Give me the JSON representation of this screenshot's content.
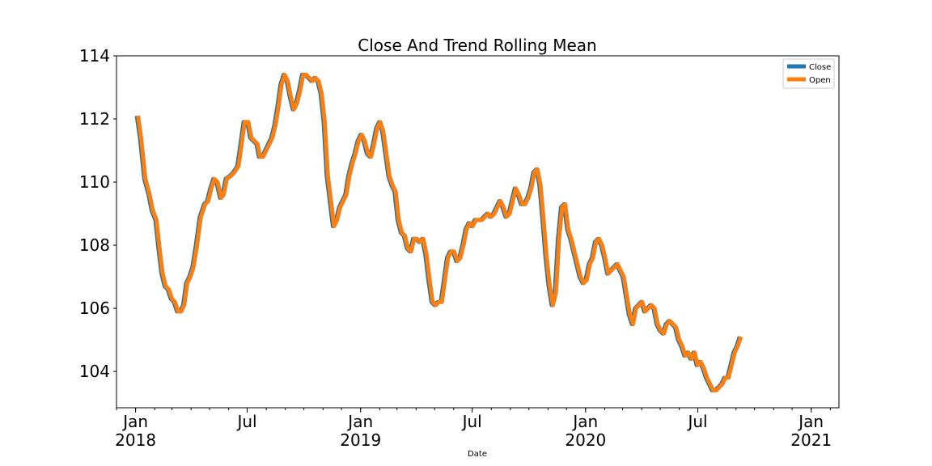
{
  "chart_data": {
    "type": "line",
    "title": "Close And Trend Rolling Mean",
    "xlabel": "Date",
    "ylabel": "",
    "x_range": [
      "2017-12-01",
      "2021-02-15"
    ],
    "ylim": [
      102.85,
      114.0
    ],
    "y_ticks": [
      104,
      106,
      108,
      110,
      112,
      114
    ],
    "x_ticks": [
      {
        "date": "2018-01-01",
        "label": "Jan",
        "year": "2018"
      },
      {
        "date": "2018-07-01",
        "label": "Jul",
        "year": ""
      },
      {
        "date": "2019-01-01",
        "label": "Jan",
        "year": "2019"
      },
      {
        "date": "2019-07-01",
        "label": "Jul",
        "year": ""
      },
      {
        "date": "2020-01-01",
        "label": "Jan",
        "year": "2020"
      },
      {
        "date": "2020-07-01",
        "label": "Jul",
        "year": ""
      },
      {
        "date": "2021-01-01",
        "label": "Jan",
        "year": "2021"
      }
    ],
    "grid": false,
    "legend_position": "upper right",
    "series": [
      {
        "name": "Close",
        "color": "#1f77b4",
        "points": [
          [
            "2018-01-03",
            112.1
          ],
          [
            "2018-01-08",
            111.4
          ],
          [
            "2018-01-15",
            110.1
          ],
          [
            "2018-01-22",
            109.6
          ],
          [
            "2018-01-27",
            109.1
          ],
          [
            "2018-02-02",
            108.8
          ],
          [
            "2018-02-07",
            107.9
          ],
          [
            "2018-02-12",
            107.1
          ],
          [
            "2018-02-17",
            106.7
          ],
          [
            "2018-02-22",
            106.6
          ],
          [
            "2018-02-27",
            106.3
          ],
          [
            "2018-03-04",
            106.2
          ],
          [
            "2018-03-09",
            105.9
          ],
          [
            "2018-03-14",
            105.9
          ],
          [
            "2018-03-19",
            106.1
          ],
          [
            "2018-03-24",
            106.8
          ],
          [
            "2018-03-29",
            107.0
          ],
          [
            "2018-04-03",
            107.3
          ],
          [
            "2018-04-08",
            107.9
          ],
          [
            "2018-04-15",
            108.9
          ],
          [
            "2018-04-22",
            109.3
          ],
          [
            "2018-04-27",
            109.4
          ],
          [
            "2018-05-02",
            109.8
          ],
          [
            "2018-05-07",
            110.1
          ],
          [
            "2018-05-12",
            110.0
          ],
          [
            "2018-05-18",
            109.5
          ],
          [
            "2018-05-22",
            109.6
          ],
          [
            "2018-05-27",
            110.1
          ],
          [
            "2018-06-03",
            110.2
          ],
          [
            "2018-06-08",
            110.3
          ],
          [
            "2018-06-15",
            110.5
          ],
          [
            "2018-06-20",
            111.2
          ],
          [
            "2018-06-25",
            111.9
          ],
          [
            "2018-07-01",
            111.9
          ],
          [
            "2018-07-06",
            111.4
          ],
          [
            "2018-07-11",
            111.3
          ],
          [
            "2018-07-16",
            111.2
          ],
          [
            "2018-07-20",
            110.8
          ],
          [
            "2018-07-25",
            110.8
          ],
          [
            "2018-07-30",
            111.0
          ],
          [
            "2018-08-04",
            111.2
          ],
          [
            "2018-08-09",
            111.4
          ],
          [
            "2018-08-14",
            111.8
          ],
          [
            "2018-08-19",
            112.4
          ],
          [
            "2018-08-24",
            113.1
          ],
          [
            "2018-08-29",
            113.4
          ],
          [
            "2018-09-03",
            113.2
          ],
          [
            "2018-09-08",
            112.7
          ],
          [
            "2018-09-13",
            112.3
          ],
          [
            "2018-09-18",
            112.5
          ],
          [
            "2018-09-23",
            112.9
          ],
          [
            "2018-09-28",
            113.4
          ],
          [
            "2018-10-03",
            113.4
          ],
          [
            "2018-10-08",
            113.3
          ],
          [
            "2018-10-13",
            113.2
          ],
          [
            "2018-10-18",
            113.3
          ],
          [
            "2018-10-23",
            113.2
          ],
          [
            "2018-10-28",
            112.8
          ],
          [
            "2018-11-02",
            111.9
          ],
          [
            "2018-11-07",
            110.2
          ],
          [
            "2018-11-12",
            109.4
          ],
          [
            "2018-11-17",
            108.6
          ],
          [
            "2018-11-22",
            108.8
          ],
          [
            "2018-11-27",
            109.2
          ],
          [
            "2018-12-02",
            109.4
          ],
          [
            "2018-12-07",
            109.6
          ],
          [
            "2018-12-12",
            110.2
          ],
          [
            "2018-12-17",
            110.6
          ],
          [
            "2018-12-22",
            110.9
          ],
          [
            "2018-12-27",
            111.3
          ],
          [
            "2019-01-01",
            111.5
          ],
          [
            "2019-01-06",
            111.3
          ],
          [
            "2019-01-11",
            110.9
          ],
          [
            "2019-01-16",
            110.8
          ],
          [
            "2019-01-21",
            111.2
          ],
          [
            "2019-01-26",
            111.7
          ],
          [
            "2019-01-31",
            111.9
          ],
          [
            "2019-02-05",
            111.6
          ],
          [
            "2019-02-10",
            110.9
          ],
          [
            "2019-02-15",
            110.2
          ],
          [
            "2019-02-20",
            109.9
          ],
          [
            "2019-02-25",
            109.7
          ],
          [
            "2019-03-02",
            108.8
          ],
          [
            "2019-03-07",
            108.4
          ],
          [
            "2019-03-12",
            108.3
          ],
          [
            "2019-03-17",
            107.9
          ],
          [
            "2019-03-22",
            107.8
          ],
          [
            "2019-03-27",
            108.2
          ],
          [
            "2019-04-01",
            108.2
          ],
          [
            "2019-04-06",
            108.1
          ],
          [
            "2019-04-11",
            108.2
          ],
          [
            "2019-04-16",
            107.7
          ],
          [
            "2019-04-21",
            106.9
          ],
          [
            "2019-04-26",
            106.2
          ],
          [
            "2019-05-01",
            106.1
          ],
          [
            "2019-05-06",
            106.2
          ],
          [
            "2019-05-11",
            106.2
          ],
          [
            "2019-05-16",
            106.9
          ],
          [
            "2019-05-21",
            107.6
          ],
          [
            "2019-05-26",
            107.8
          ],
          [
            "2019-05-31",
            107.8
          ],
          [
            "2019-06-05",
            107.5
          ],
          [
            "2019-06-10",
            107.6
          ],
          [
            "2019-06-15",
            108.0
          ],
          [
            "2019-06-20",
            108.5
          ],
          [
            "2019-06-25",
            108.7
          ],
          [
            "2019-06-30",
            108.6
          ],
          [
            "2019-07-05",
            108.8
          ],
          [
            "2019-07-10",
            108.8
          ],
          [
            "2019-07-15",
            108.8
          ],
          [
            "2019-07-20",
            108.9
          ],
          [
            "2019-07-25",
            109.0
          ],
          [
            "2019-07-30",
            108.9
          ],
          [
            "2019-08-04",
            109.0
          ],
          [
            "2019-08-09",
            109.2
          ],
          [
            "2019-08-14",
            109.4
          ],
          [
            "2019-08-19",
            109.2
          ],
          [
            "2019-08-24",
            108.9
          ],
          [
            "2019-08-29",
            109.0
          ],
          [
            "2019-09-03",
            109.4
          ],
          [
            "2019-09-08",
            109.8
          ],
          [
            "2019-09-13",
            109.6
          ],
          [
            "2019-09-18",
            109.3
          ],
          [
            "2019-09-23",
            109.3
          ],
          [
            "2019-09-28",
            109.5
          ],
          [
            "2019-10-03",
            109.8
          ],
          [
            "2019-10-08",
            110.3
          ],
          [
            "2019-10-13",
            110.4
          ],
          [
            "2019-10-18",
            109.9
          ],
          [
            "2019-10-23",
            108.8
          ],
          [
            "2019-10-28",
            107.6
          ],
          [
            "2019-11-02",
            106.7
          ],
          [
            "2019-11-07",
            106.1
          ],
          [
            "2019-11-12",
            106.5
          ],
          [
            "2019-11-17",
            108.2
          ],
          [
            "2019-11-22",
            109.2
          ],
          [
            "2019-11-27",
            109.3
          ],
          [
            "2019-12-02",
            108.5
          ],
          [
            "2019-12-07",
            108.2
          ],
          [
            "2019-12-12",
            107.8
          ],
          [
            "2019-12-17",
            107.4
          ],
          [
            "2019-12-22",
            107.0
          ],
          [
            "2019-12-27",
            106.8
          ],
          [
            "2020-01-01",
            106.9
          ],
          [
            "2020-01-06",
            107.4
          ],
          [
            "2020-01-11",
            107.6
          ],
          [
            "2020-01-16",
            108.1
          ],
          [
            "2020-01-21",
            108.2
          ],
          [
            "2020-01-26",
            108.0
          ],
          [
            "2020-01-31",
            107.6
          ],
          [
            "2020-02-05",
            107.1
          ],
          [
            "2020-02-10",
            107.2
          ],
          [
            "2020-02-15",
            107.3
          ],
          [
            "2020-02-20",
            107.4
          ],
          [
            "2020-02-25",
            107.2
          ],
          [
            "2020-03-01",
            107.0
          ],
          [
            "2020-03-06",
            106.4
          ],
          [
            "2020-03-11",
            105.8
          ],
          [
            "2020-03-16",
            105.5
          ],
          [
            "2020-03-21",
            106.0
          ],
          [
            "2020-03-26",
            106.1
          ],
          [
            "2020-03-31",
            106.2
          ],
          [
            "2020-04-05",
            105.9
          ],
          [
            "2020-04-10",
            106.0
          ],
          [
            "2020-04-15",
            106.1
          ],
          [
            "2020-04-20",
            106.0
          ],
          [
            "2020-04-25",
            105.5
          ],
          [
            "2020-04-30",
            105.3
          ],
          [
            "2020-05-05",
            105.2
          ],
          [
            "2020-05-10",
            105.5
          ],
          [
            "2020-05-15",
            105.6
          ],
          [
            "2020-05-20",
            105.5
          ],
          [
            "2020-05-25",
            105.4
          ],
          [
            "2020-05-30",
            105.0
          ],
          [
            "2020-06-04",
            104.8
          ],
          [
            "2020-06-09",
            104.5
          ],
          [
            "2020-06-14",
            104.6
          ],
          [
            "2020-06-19",
            104.4
          ],
          [
            "2020-06-24",
            104.6
          ],
          [
            "2020-06-29",
            104.2
          ],
          [
            "2020-07-04",
            104.3
          ],
          [
            "2020-07-09",
            104.1
          ],
          [
            "2020-07-14",
            103.8
          ],
          [
            "2020-07-19",
            103.6
          ],
          [
            "2020-07-24",
            103.4
          ],
          [
            "2020-07-29",
            103.4
          ],
          [
            "2020-08-03",
            103.5
          ],
          [
            "2020-08-08",
            103.6
          ],
          [
            "2020-08-13",
            103.8
          ],
          [
            "2020-08-18",
            103.8
          ],
          [
            "2020-08-23",
            104.2
          ],
          [
            "2020-08-28",
            104.6
          ],
          [
            "2020-09-02",
            104.8
          ],
          [
            "2020-09-07",
            105.1
          ]
        ]
      },
      {
        "name": "Open",
        "color": "#ff7f0e",
        "points": []
      }
    ]
  }
}
